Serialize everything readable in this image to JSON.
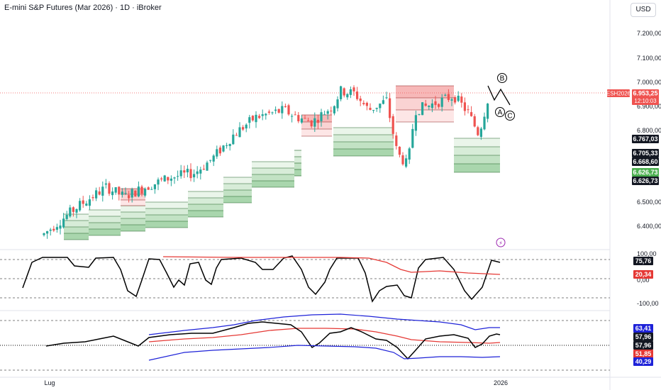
{
  "header": {
    "title": "E-mini S&P Futures (Mar 2026) · 1D · iBroker",
    "currency": "USD"
  },
  "price_axis": {
    "ticks": [
      "7.200,00",
      "7.100,00",
      "7.000,00",
      "6.900,00",
      "6.800,00",
      "6.500,00",
      "6.400,00"
    ],
    "symbol_tag": "ESH2026",
    "last_price": "6.953,25",
    "countdown": "12:10:03",
    "level_tags": [
      {
        "text": "6.767,03",
        "bg": "#131722",
        "fg": "#ffffff"
      },
      {
        "text": "6.705,33",
        "bg": "#131722",
        "fg": "#ffffff"
      },
      {
        "text": "6.668,60",
        "bg": "#131722",
        "fg": "#ffffff"
      },
      {
        "text": "6.626,73",
        "bg": "#4caf50",
        "fg": "#ffffff"
      },
      {
        "text": "6.626,73",
        "bg": "#131722",
        "fg": "#ffffff"
      }
    ],
    "up_color": "#26a69a",
    "down_color": "#ef5350"
  },
  "wave_labels": [
    "A",
    "B",
    "C"
  ],
  "osc1": {
    "ticks": [
      "100,00",
      "0,00",
      "-100,00"
    ],
    "tags": [
      {
        "text": "75,76",
        "bg": "#131722",
        "fg": "#ffffff"
      },
      {
        "text": "20,34",
        "bg": "#e53935",
        "fg": "#ffffff"
      }
    ]
  },
  "osc2": {
    "tags": [
      {
        "text": "63,41",
        "bg": "#1e22d8",
        "fg": "#ffffff"
      },
      {
        "text": "57,96",
        "bg": "#131722",
        "fg": "#ffffff"
      },
      {
        "text": "57,96",
        "bg": "#131722",
        "fg": "#ffffff"
      },
      {
        "text": "51,85",
        "bg": "#e53935",
        "fg": "#ffffff"
      },
      {
        "text": "40,29",
        "bg": "#1e22d8",
        "fg": "#ffffff"
      }
    ]
  },
  "time_axis": {
    "labels": [
      "Lug",
      "2026"
    ]
  },
  "chart_data": {
    "type": "candlestick",
    "title": "E-mini S&P Futures (Mar 2026) · 1D · iBroker",
    "price_range": [
      6320,
      7250
    ],
    "last_price": 6953.25,
    "zones": [
      {
        "name": "bands-1",
        "start": 6270,
        "segments": [
          [
            0,
            6590,
            6540,
            6500,
            6470,
            6440
          ],
          [
            62,
            6500,
            6460,
            6440,
            6420,
            6400
          ],
          [
            85,
            6540,
            6510,
            6480,
            6460,
            6430
          ],
          [
            110,
            6580,
            6550,
            6520,
            6500,
            6470
          ],
          [
            135,
            6620,
            6590,
            6560,
            6540,
            6510
          ],
          [
            160,
            6700,
            6660,
            6640,
            6620,
            6590
          ],
          [
            184,
            6730,
            6700,
            6680,
            6660,
            6630
          ]
        ],
        "end": 198
      },
      {
        "name": "supply-a",
        "range": [
          6480,
          6560
        ],
        "x": [
          6470,
          6530
        ]
      },
      {
        "name": "supply-b",
        "range": [
          6860,
          6880
        ],
        "x": [
          6080,
          6460
        ]
      }
    ],
    "osc1": {
      "range": [
        -110,
        110
      ],
      "series": [
        {
          "name": "osc-black",
          "color": "#000000"
        },
        {
          "name": "osc-red",
          "color": "#e53935"
        }
      ]
    },
    "osc2": {
      "series": [
        {
          "name": "upper",
          "color": "#1e22d8"
        },
        {
          "name": "mid",
          "color": "#e53935"
        },
        {
          "name": "main",
          "color": "#000000"
        },
        {
          "name": "lower",
          "color": "#1e22d8"
        }
      ],
      "last_values": {
        "upper": 63.41,
        "main": 57.96,
        "mid": 51.85,
        "lower": 40.29
      }
    },
    "x_labels": [
      "Lug",
      "2026"
    ]
  }
}
